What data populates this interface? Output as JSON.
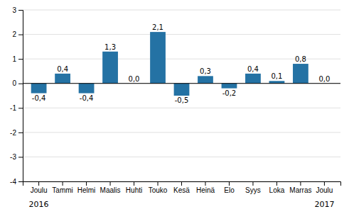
{
  "chart_data": {
    "type": "bar",
    "categories": [
      "Joulu",
      "Tammi",
      "Helmi",
      "Maalis",
      "Huhti",
      "Touko",
      "Kesä",
      "Heinä",
      "Elo",
      "Syys",
      "Loka",
      "Marras",
      "Joulu"
    ],
    "values": [
      -0.4,
      0.4,
      -0.4,
      1.3,
      0.0,
      2.1,
      -0.5,
      0.3,
      -0.2,
      0.4,
      0.1,
      0.8,
      0.0
    ],
    "value_labels": [
      "-0,4",
      "0,4",
      "-0,4",
      "1,3",
      "0,0",
      "2,1",
      "-0,5",
      "0,3",
      "-0,2",
      "0,4",
      "0,1",
      "0,8",
      "0,0"
    ],
    "color": "#2472a4",
    "ylim": [
      -4,
      3
    ],
    "yticks": [
      -4,
      -3,
      -2,
      -1,
      0,
      1,
      2,
      3
    ],
    "grid": true,
    "data_labels": true,
    "annotations": [
      "2016",
      "2017"
    ]
  }
}
